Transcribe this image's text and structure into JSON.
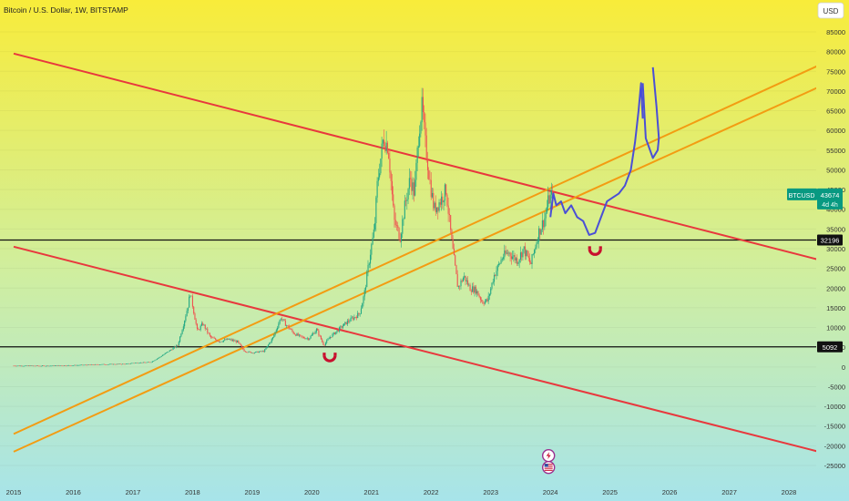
{
  "header": {
    "title": "Bitcoin / U.S. Dollar, 1W, BITSTAMP",
    "currency_button": "USD"
  },
  "colors": {
    "bg_top": "#f8ec3a",
    "bg_mid": "#cfeea0",
    "bg_bottom": "#a7e4ea",
    "candle_up": "#22a884",
    "candle_down": "#ef5350",
    "red_line": "#e8383d",
    "orange_line": "#f39c12",
    "projection": "#4a4fd6",
    "horizontal": "#111111",
    "price_badge": "#089981"
  },
  "chart_data": {
    "type": "candlestick",
    "symbol": "BTCUSD",
    "interval": "1W",
    "exchange": "BITSTAMP",
    "x_ticks": [
      "2015",
      "2016",
      "2017",
      "2018",
      "2019",
      "2020",
      "2021",
      "2022",
      "2023",
      "2024",
      "2025",
      "2026",
      "2027",
      "2028"
    ],
    "y_ticks": [
      85000,
      80000,
      75000,
      70000,
      65000,
      60000,
      55000,
      50000,
      45000,
      40000,
      35000,
      30000,
      25000,
      20000,
      15000,
      10000,
      5000,
      0,
      -5000,
      -10000,
      -15000,
      -20000,
      -25000
    ],
    "ylim": [
      -27000,
      91000
    ],
    "price_series": [
      [
        2015.0,
        300
      ],
      [
        2015.5,
        260
      ],
      [
        2016.0,
        400
      ],
      [
        2016.5,
        650
      ],
      [
        2016.9,
        750
      ],
      [
        2017.0,
        1000
      ],
      [
        2017.3,
        1200
      ],
      [
        2017.45,
        2500
      ],
      [
        2017.6,
        4000
      ],
      [
        2017.75,
        5500
      ],
      [
        2017.85,
        11000
      ],
      [
        2017.93,
        16000
      ],
      [
        2017.96,
        19000
      ],
      [
        2018.02,
        14000
      ],
      [
        2018.08,
        9000
      ],
      [
        2018.17,
        11000
      ],
      [
        2018.3,
        7500
      ],
      [
        2018.45,
        6500
      ],
      [
        2018.6,
        7000
      ],
      [
        2018.75,
        6400
      ],
      [
        2018.87,
        4000
      ],
      [
        2019.0,
        3600
      ],
      [
        2019.2,
        4000
      ],
      [
        2019.35,
        7500
      ],
      [
        2019.48,
        12500
      ],
      [
        2019.55,
        11000
      ],
      [
        2019.7,
        8500
      ],
      [
        2019.83,
        7500
      ],
      [
        2019.95,
        7200
      ],
      [
        2020.08,
        9500
      ],
      [
        2020.2,
        5500
      ],
      [
        2020.3,
        7500
      ],
      [
        2020.45,
        9500
      ],
      [
        2020.6,
        11500
      ],
      [
        2020.8,
        13500
      ],
      [
        2020.88,
        18500
      ],
      [
        2020.98,
        29000
      ],
      [
        2021.05,
        35000
      ],
      [
        2021.1,
        47000
      ],
      [
        2021.2,
        58000
      ],
      [
        2021.28,
        56000
      ],
      [
        2021.38,
        37000
      ],
      [
        2021.48,
        33000
      ],
      [
        2021.55,
        40000
      ],
      [
        2021.65,
        48000
      ],
      [
        2021.72,
        44000
      ],
      [
        2021.8,
        61000
      ],
      [
        2021.85,
        66000
      ],
      [
        2021.9,
        57000
      ],
      [
        2021.98,
        47000
      ],
      [
        2022.05,
        40000
      ],
      [
        2022.15,
        42000
      ],
      [
        2022.25,
        45000
      ],
      [
        2022.35,
        31000
      ],
      [
        2022.45,
        20000
      ],
      [
        2022.55,
        23000
      ],
      [
        2022.65,
        20000
      ],
      [
        2022.75,
        19500
      ],
      [
        2022.86,
        16500
      ],
      [
        2022.95,
        16800
      ],
      [
        2023.05,
        23000
      ],
      [
        2023.2,
        28000
      ],
      [
        2023.3,
        29000
      ],
      [
        2023.45,
        27000
      ],
      [
        2023.55,
        30000
      ],
      [
        2023.67,
        26000
      ],
      [
        2023.8,
        34000
      ],
      [
        2023.9,
        37500
      ],
      [
        2023.97,
        42500
      ],
      [
        2024.05,
        43674
      ]
    ],
    "current_price": {
      "label": "BTCUSD",
      "value": "43674",
      "countdown": "4d 4h"
    },
    "horizontal_levels": [
      {
        "value": 32196,
        "label": "32196"
      },
      {
        "value": 5092,
        "label": "5092"
      }
    ],
    "trend_lines": [
      {
        "color": "red",
        "from": [
          2015.0,
          79500
        ],
        "to": [
          2028.5,
          27200
        ]
      },
      {
        "color": "red",
        "from": [
          2015.0,
          30500
        ],
        "to": [
          2028.5,
          -21500
        ]
      },
      {
        "color": "orange",
        "from": [
          2015.0,
          -17000
        ],
        "to": [
          2028.5,
          76500
        ]
      },
      {
        "color": "orange",
        "from": [
          2015.0,
          -21500
        ],
        "to": [
          2028.5,
          71000
        ]
      }
    ],
    "projection_path": [
      [
        2024.0,
        38000
      ],
      [
        2024.05,
        44000
      ],
      [
        2024.1,
        41000
      ],
      [
        2024.18,
        42000
      ],
      [
        2024.25,
        39000
      ],
      [
        2024.35,
        41000
      ],
      [
        2024.45,
        38000
      ],
      [
        2024.55,
        37000
      ],
      [
        2024.65,
        33500
      ],
      [
        2024.75,
        34000
      ],
      [
        2024.85,
        38000
      ],
      [
        2024.95,
        42000
      ],
      [
        2025.05,
        43000
      ],
      [
        2025.15,
        44000
      ],
      [
        2025.25,
        46000
      ],
      [
        2025.35,
        50000
      ],
      [
        2025.42,
        57000
      ],
      [
        2025.48,
        65000
      ],
      [
        2025.52,
        72000
      ],
      [
        2025.55,
        63000
      ]
    ],
    "projection_path_2": [
      [
        2025.55,
        72000
      ],
      [
        2025.6,
        58000
      ],
      [
        2025.72,
        53000
      ],
      [
        2025.8,
        55000
      ],
      [
        2025.82,
        58000
      ],
      [
        2025.78,
        66000
      ],
      [
        2025.72,
        76000
      ]
    ],
    "markers": [
      {
        "name": "magnet",
        "at": [
          2020.3,
          2000
        ]
      },
      {
        "name": "magnet",
        "at": [
          2024.75,
          29000
        ]
      },
      {
        "name": "lightning",
        "at": [
          2023.97,
          -22500
        ]
      },
      {
        "name": "us-flag",
        "at": [
          2023.97,
          -25500
        ]
      }
    ]
  }
}
